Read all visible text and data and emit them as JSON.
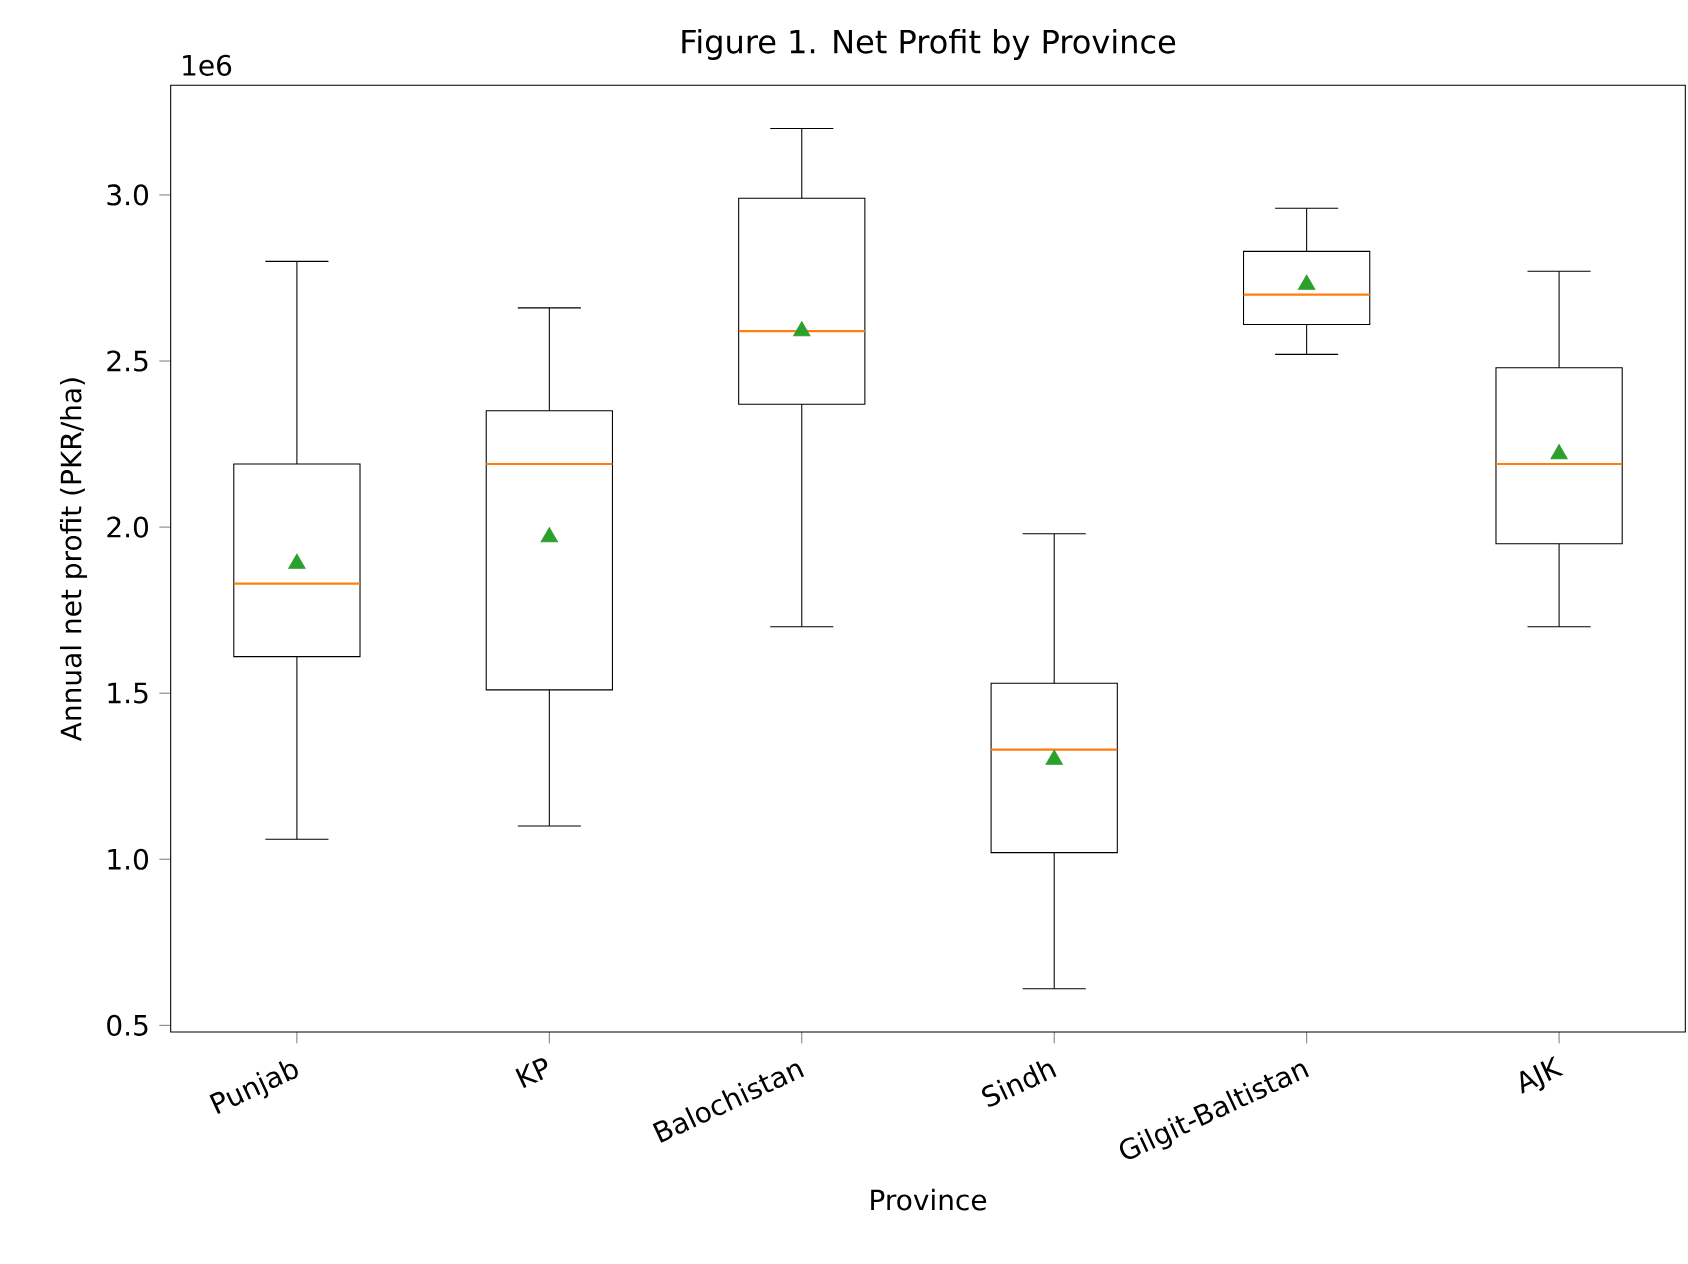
{
  "chart_data": {
    "type": "box",
    "title": "Figure 1. Net Profit by Province",
    "xlabel": "Province",
    "ylabel": "Annual net profit (PKR/ha)",
    "categories": [
      "Punjab",
      "KP",
      "Balochistan",
      "Sindh",
      "Gilgit-Baltistan",
      "AJK"
    ],
    "boxes": [
      {
        "low": 1.06,
        "q1": 1.61,
        "median": 1.83,
        "q3": 2.19,
        "high": 2.8,
        "mean": 1.89
      },
      {
        "low": 1.1,
        "q1": 1.51,
        "median": 2.19,
        "q3": 2.35,
        "high": 2.66,
        "mean": 1.97
      },
      {
        "low": 1.7,
        "q1": 2.37,
        "median": 2.59,
        "q3": 2.99,
        "high": 3.2,
        "mean": 2.59
      },
      {
        "low": 0.61,
        "q1": 1.02,
        "median": 1.33,
        "q3": 1.53,
        "high": 1.98,
        "mean": 1.3
      },
      {
        "low": 2.52,
        "q1": 2.61,
        "median": 2.7,
        "q3": 2.83,
        "high": 2.96,
        "mean": 2.73
      },
      {
        "low": 1.7,
        "q1": 1.95,
        "median": 2.19,
        "q3": 2.48,
        "high": 2.77,
        "mean": 2.22
      }
    ],
    "ylim": [
      0.48,
      3.33
    ],
    "yticks": [
      {
        "value": 0.5,
        "label": "0.5"
      },
      {
        "value": 1.0,
        "label": "1.0"
      },
      {
        "value": 1.5,
        "label": "1.5"
      },
      {
        "value": 2.0,
        "label": "2.0"
      },
      {
        "value": 2.5,
        "label": "2.5"
      },
      {
        "value": 3.0,
        "label": "3.0"
      }
    ],
    "marker": "triangle",
    "annotations": [
      "1e6"
    ]
  }
}
